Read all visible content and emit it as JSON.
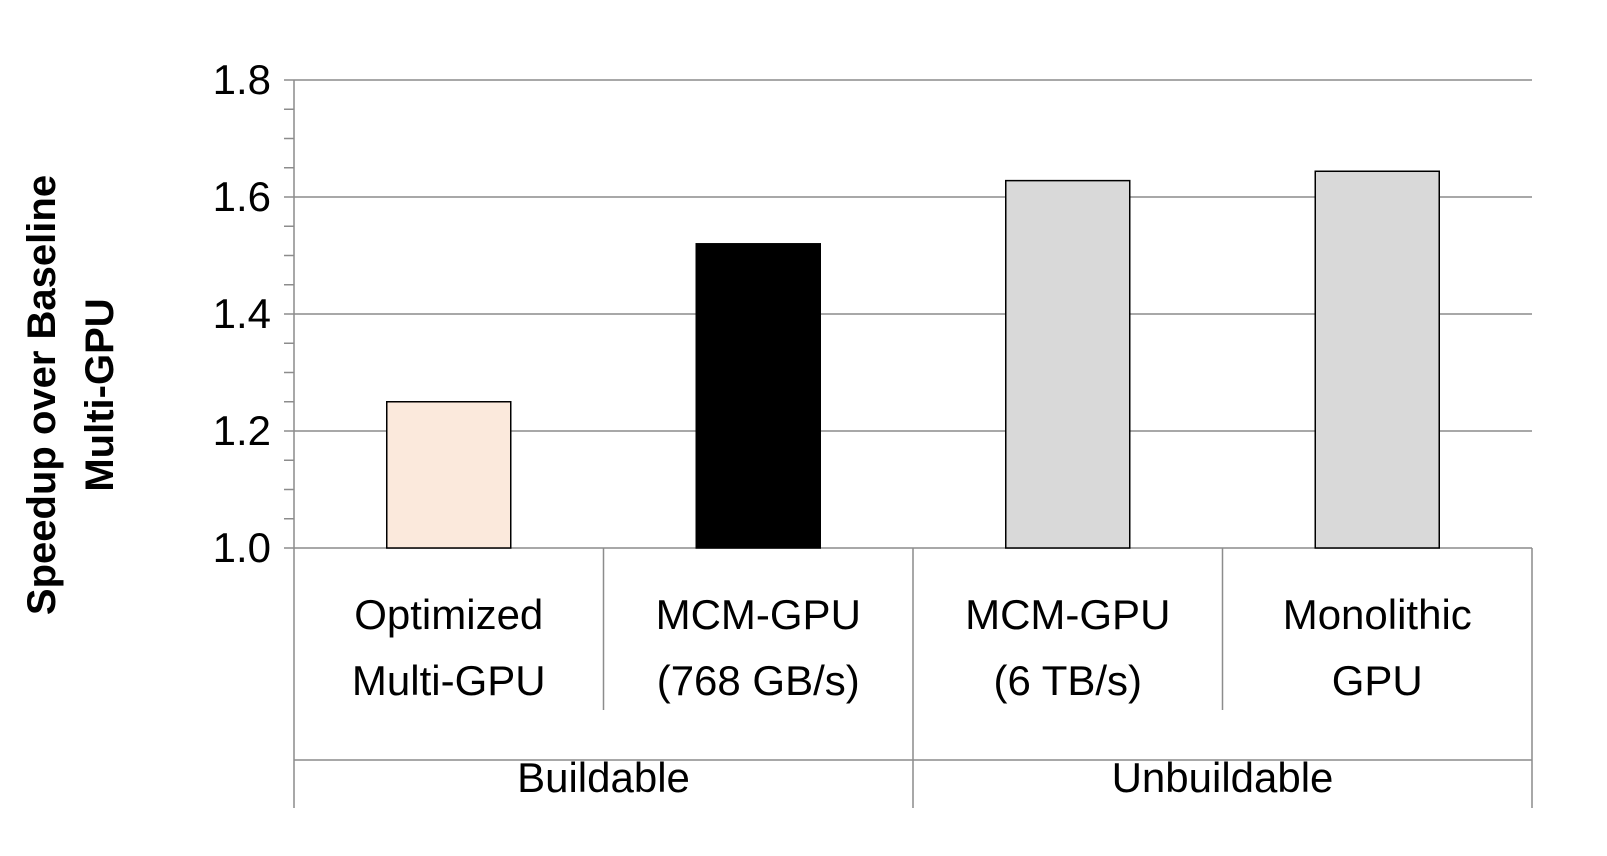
{
  "chart_data": {
    "type": "bar",
    "title": "",
    "ylabel": "Speedup over Baseline Multi-GPU",
    "ylabel_lines": [
      "Speedup over Baseline",
      "Multi-GPU"
    ],
    "xlabel": "",
    "ylim": [
      1.0,
      1.8
    ],
    "yticks": [
      "1.0",
      "1.2",
      "1.4",
      "1.6",
      "1.8"
    ],
    "grid": true,
    "categories": [
      {
        "lines": [
          "Optimized",
          "Multi-GPU"
        ],
        "value": 1.25,
        "color": "#fbe9dc"
      },
      {
        "lines": [
          "MCM-GPU",
          "(768 GB/s)"
        ],
        "value": 1.52,
        "color": "#000000"
      },
      {
        "lines": [
          "MCM-GPU",
          "(6 TB/s)"
        ],
        "value": 1.628,
        "color": "#d9d9d9"
      },
      {
        "lines": [
          "Monolithic",
          "GPU"
        ],
        "value": 1.644,
        "color": "#d9d9d9"
      }
    ],
    "groups": [
      {
        "label": "Buildable",
        "span": [
          0,
          1
        ]
      },
      {
        "label": "Unbuildable",
        "span": [
          2,
          3
        ]
      }
    ]
  }
}
